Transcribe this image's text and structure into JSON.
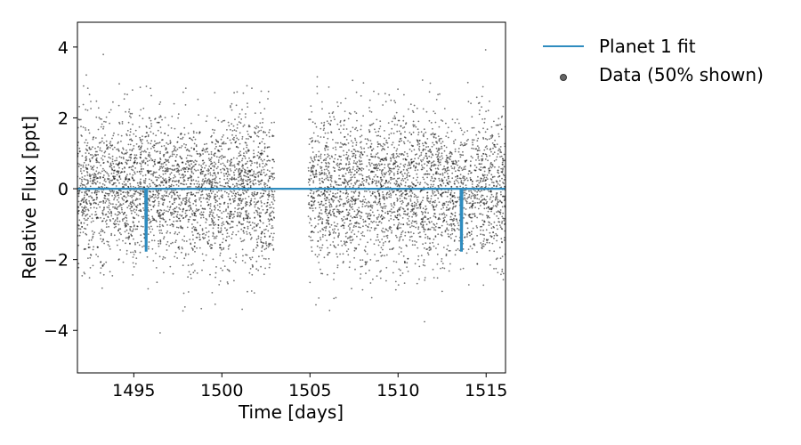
{
  "chart_data": {
    "type": "scatter",
    "title": "",
    "xlabel": "Time [days]",
    "ylabel": "Relative Flux [ppt]",
    "xlim": [
      1491.8,
      1516.1
    ],
    "ylim": [
      -5.2,
      4.7
    ],
    "x_ticks": [
      1495,
      1500,
      1505,
      1510,
      1515
    ],
    "y_ticks": [
      -4,
      -2,
      0,
      2,
      4
    ],
    "grid": false,
    "legend_position": "outside-right-top",
    "data_segments": [
      {
        "x_start": 1491.8,
        "x_end": 1503.0
      },
      {
        "x_start": 1504.9,
        "x_end": 1516.1
      }
    ],
    "data_scatter_std": 1.05,
    "series": [
      {
        "name": "Planet 1 fit",
        "kind": "line",
        "color": "#2f8cbf",
        "baseline": 0.0,
        "transits": [
          {
            "time": 1495.7,
            "depth": -1.75
          },
          {
            "time": 1513.6,
            "depth": -1.75
          }
        ]
      },
      {
        "name": "Data (50% shown)",
        "kind": "points",
        "color": "#000000",
        "count": 6000
      }
    ]
  }
}
